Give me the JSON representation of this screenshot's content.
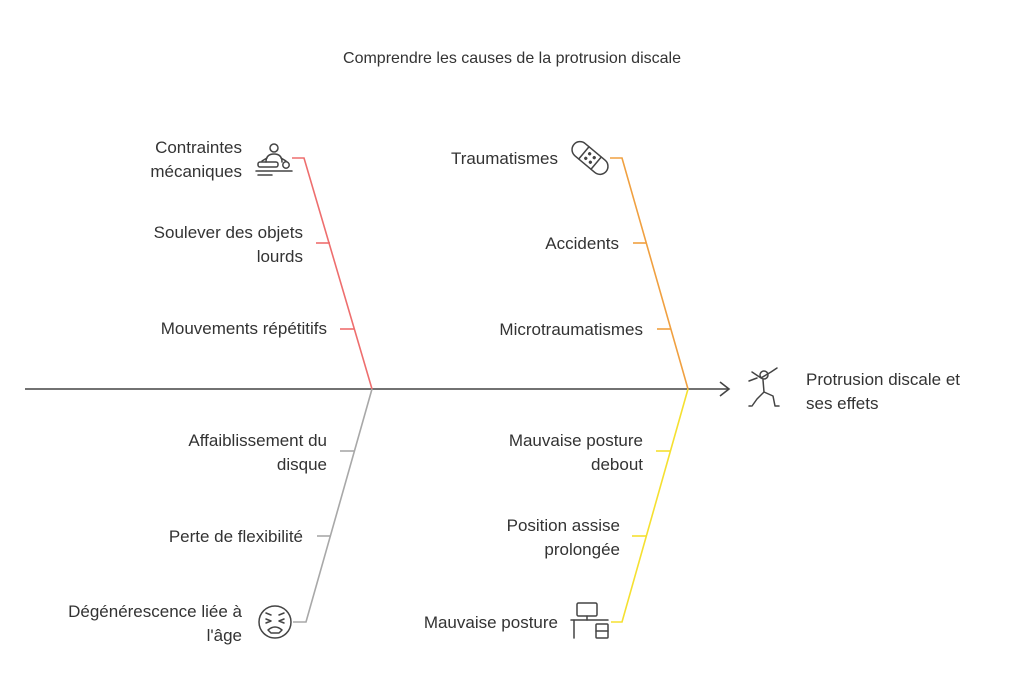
{
  "title": "Comprendre les causes de la protrusion discale",
  "effect": {
    "label": "Protrusion discale et ses effets",
    "line1": "Protrusion discale et",
    "line2": "ses effets",
    "icon": "fighter-figure-icon"
  },
  "colors": {
    "spine": "#444444",
    "red": "#ee6e6e",
    "orange": "#f0a040",
    "grey": "#a8a8a8",
    "yellow": "#f5e030"
  },
  "branches": {
    "red": {
      "head_line1": "Contraintes",
      "head_line2": "mécaniques",
      "head_icon": "massage-person-icon",
      "item1_line1": "Soulever des objets",
      "item1_line2": "lourds",
      "item2": "Mouvements répétitifs"
    },
    "orange": {
      "head": "Traumatismes",
      "head_icon": "bandage-icon",
      "item1": "Accidents",
      "item2": "Microtraumatismes"
    },
    "grey": {
      "item1_line1": "Affaiblissement du",
      "item1_line2": "disque",
      "item2": "Perte de flexibilité",
      "head_line1": "Dégénérescence liée à",
      "head_line2": "l'âge",
      "head_icon": "tired-face-icon"
    },
    "yellow": {
      "item1_line1": "Mauvaise posture",
      "item1_line2": "debout",
      "item2_line1": "Position assise",
      "item2_line2": "prolongée",
      "head": "Mauvaise posture",
      "head_icon": "desk-icon"
    }
  }
}
